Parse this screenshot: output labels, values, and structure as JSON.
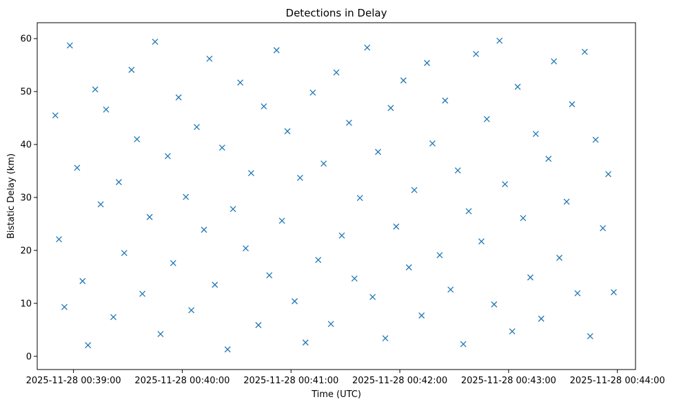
{
  "chart_data": {
    "type": "scatter",
    "title": "Detections in Delay",
    "xlabel": "Time (UTC)",
    "ylabel": "Bistatic Delay (km)",
    "x_ticks": [
      "2025-11-28 00:39:00",
      "2025-11-28 00:40:00",
      "2025-11-28 00:41:00",
      "2025-11-28 00:42:00",
      "2025-11-28 00:43:00",
      "2025-11-28 00:44:00"
    ],
    "y_ticks": [
      0,
      10,
      20,
      30,
      40,
      50,
      60
    ],
    "xlim": [
      "2025-11-28 00:38:40",
      "2025-11-28 00:44:10"
    ],
    "ylim": [
      -2.5,
      63
    ],
    "marker": "x",
    "grid": false,
    "color": "#1f77b4",
    "series": [
      {
        "x": [
          "2025-11-28 00:38:50",
          "2025-11-28 00:38:52",
          "2025-11-28 00:38:55",
          "2025-11-28 00:38:58",
          "2025-11-28 00:39:02",
          "2025-11-28 00:39:05",
          "2025-11-28 00:39:08",
          "2025-11-28 00:39:12",
          "2025-11-28 00:39:15",
          "2025-11-28 00:39:18",
          "2025-11-28 00:39:22",
          "2025-11-28 00:39:25",
          "2025-11-28 00:39:28",
          "2025-11-28 00:39:32",
          "2025-11-28 00:39:35",
          "2025-11-28 00:39:38",
          "2025-11-28 00:39:42",
          "2025-11-28 00:39:45",
          "2025-11-28 00:39:48",
          "2025-11-28 00:39:52",
          "2025-11-28 00:39:55",
          "2025-11-28 00:39:58",
          "2025-11-28 00:40:02",
          "2025-11-28 00:40:05",
          "2025-11-28 00:40:08",
          "2025-11-28 00:40:12",
          "2025-11-28 00:40:15",
          "2025-11-28 00:40:18",
          "2025-11-28 00:40:22",
          "2025-11-28 00:40:25",
          "2025-11-28 00:40:28",
          "2025-11-28 00:40:32",
          "2025-11-28 00:40:35",
          "2025-11-28 00:40:38",
          "2025-11-28 00:40:42",
          "2025-11-28 00:40:45",
          "2025-11-28 00:40:48",
          "2025-11-28 00:40:52",
          "2025-11-28 00:40:55",
          "2025-11-28 00:40:58",
          "2025-11-28 00:41:02",
          "2025-11-28 00:41:05",
          "2025-11-28 00:41:08",
          "2025-11-28 00:41:12",
          "2025-11-28 00:41:15",
          "2025-11-28 00:41:18",
          "2025-11-28 00:41:22",
          "2025-11-28 00:41:25",
          "2025-11-28 00:41:28",
          "2025-11-28 00:41:32",
          "2025-11-28 00:41:35",
          "2025-11-28 00:41:38",
          "2025-11-28 00:41:42",
          "2025-11-28 00:41:45",
          "2025-11-28 00:41:48",
          "2025-11-28 00:41:52",
          "2025-11-28 00:41:55",
          "2025-11-28 00:41:58",
          "2025-11-28 00:42:02",
          "2025-11-28 00:42:05",
          "2025-11-28 00:42:08",
          "2025-11-28 00:42:12",
          "2025-11-28 00:42:15",
          "2025-11-28 00:42:18",
          "2025-11-28 00:42:22",
          "2025-11-28 00:42:25",
          "2025-11-28 00:42:28",
          "2025-11-28 00:42:32",
          "2025-11-28 00:42:35",
          "2025-11-28 00:42:38",
          "2025-11-28 00:42:42",
          "2025-11-28 00:42:45",
          "2025-11-28 00:42:48",
          "2025-11-28 00:42:52",
          "2025-11-28 00:42:55",
          "2025-11-28 00:42:58",
          "2025-11-28 00:43:02",
          "2025-11-28 00:43:05",
          "2025-11-28 00:43:08",
          "2025-11-28 00:43:12",
          "2025-11-28 00:43:15",
          "2025-11-28 00:43:18",
          "2025-11-28 00:43:22",
          "2025-11-28 00:43:25",
          "2025-11-28 00:43:28",
          "2025-11-28 00:43:32",
          "2025-11-28 00:43:35",
          "2025-11-28 00:43:38",
          "2025-11-28 00:43:42",
          "2025-11-28 00:43:45",
          "2025-11-28 00:43:48",
          "2025-11-28 00:43:52",
          "2025-11-28 00:43:55",
          "2025-11-28 00:43:58"
        ],
        "y": [
          45.5,
          22.1,
          9.3,
          58.7,
          35.6,
          14.2,
          2.1,
          50.4,
          28.7,
          46.6,
          7.4,
          32.9,
          19.5,
          54.1,
          41.0,
          11.8,
          26.3,
          59.4,
          4.2,
          37.8,
          17.6,
          48.9,
          30.1,
          8.7,
          43.3,
          23.9,
          56.2,
          13.5,
          39.4,
          1.3,
          27.8,
          51.7,
          20.4,
          34.6,
          5.9,
          47.2,
          15.3,
          57.8,
          25.6,
          42.5,
          10.4,
          33.7,
          2.6,
          49.8,
          18.2,
          36.4,
          6.1,
          53.6,
          22.8,
          44.1,
          14.7,
          29.9,
          58.3,
          11.2,
          38.6,
          3.4,
          46.9,
          24.5,
          52.1,
          16.8,
          31.4,
          7.7,
          55.4,
          40.2,
          19.1,
          48.3,
          12.6,
          35.1,
          2.3,
          27.4,
          57.1,
          21.7,
          44.8,
          9.8,
          59.6,
          32.5,
          4.7,
          50.9,
          26.1,
          14.9,
          42.0,
          7.1,
          37.3,
          55.7,
          18.6,
          29.2,
          47.6,
          11.9,
          57.5,
          3.8,
          40.9,
          24.2,
          34.4,
          12.1
        ]
      }
    ]
  }
}
